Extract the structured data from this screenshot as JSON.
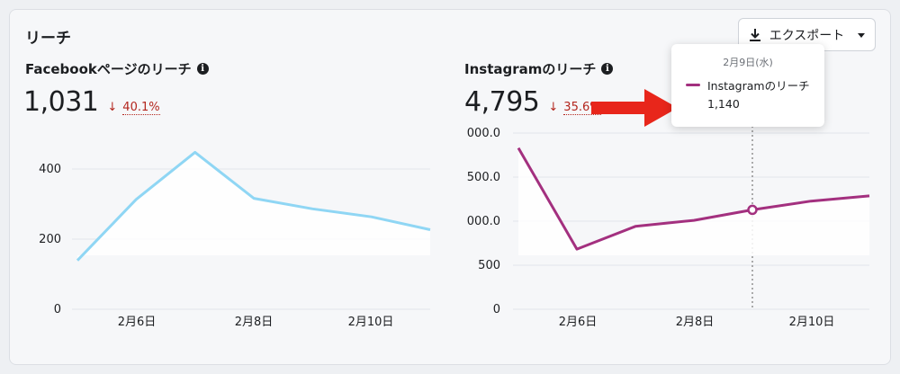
{
  "section": {
    "title": "リーチ"
  },
  "export": {
    "label": "エクスポート",
    "icon": "download-icon",
    "caret": "chevron-down-icon"
  },
  "facebook": {
    "title": "Facebookページのリーチ",
    "value": "1,031",
    "delta": "40.1%",
    "delta_direction": "down",
    "delta_color": "#b3261e"
  },
  "instagram": {
    "title": "Instagramのリーチ",
    "value": "4,795",
    "delta": "35.6%",
    "delta_direction": "down",
    "delta_color": "#b3261e"
  },
  "tooltip": {
    "date": "2月9日(水)",
    "series": "Instagramのリーチ",
    "value": "1,140"
  },
  "chart_data": [
    {
      "type": "line",
      "x_ticks": [
        "2月6日",
        "2月8日",
        "2月10日"
      ],
      "y_ticks": [
        "0",
        "200",
        "400"
      ],
      "ylim": [
        0,
        500
      ],
      "line_color": "#8fd6f4",
      "series": [
        {
          "values": [
            140,
            315,
            450,
            318,
            288,
            265,
            228
          ]
        }
      ]
    },
    {
      "type": "line",
      "x_ticks": [
        "2月6日",
        "2月8日",
        "2月10日"
      ],
      "y_ticks": [
        "0",
        "500",
        "000.0",
        "500.0",
        "000.0"
      ],
      "ylim": [
        0,
        2000
      ],
      "line_color": "#a3307f",
      "hover_index": 4,
      "series": [
        {
          "values": [
            1850,
            690,
            950,
            1020,
            1140,
            1240,
            1300
          ]
        }
      ]
    }
  ]
}
